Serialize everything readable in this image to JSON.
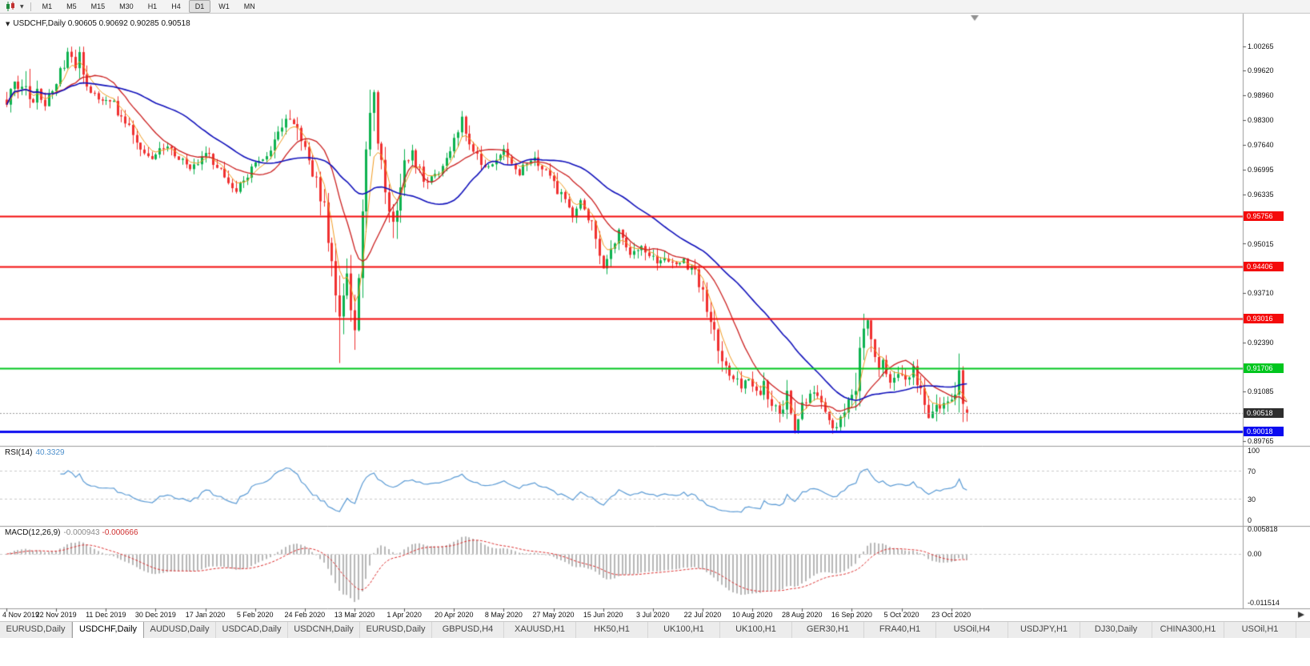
{
  "toolbar": {
    "timeframes": [
      "M1",
      "M5",
      "M15",
      "M30",
      "H1",
      "H4",
      "D1",
      "W1",
      "MN"
    ],
    "active_timeframe": "D1"
  },
  "main_chart": {
    "title": "USDCHF,Daily",
    "ohlc_text": "0.90605 0.90692 0.90285 0.90518",
    "open": "0.90605",
    "high": "0.90692",
    "low": "0.90285",
    "close": "0.90518",
    "axis_labels": [
      {
        "price": 1.00265,
        "label": "1.00265"
      },
      {
        "price": 0.9962,
        "label": "0.99620"
      },
      {
        "price": 0.9896,
        "label": "0.98960"
      },
      {
        "price": 0.983,
        "label": "0.98300"
      },
      {
        "price": 0.9764,
        "label": "0.97640"
      },
      {
        "price": 0.96995,
        "label": "0.96995"
      },
      {
        "price": 0.96335,
        "label": "0.96335"
      },
      {
        "price": 0.95015,
        "label": "0.95015"
      },
      {
        "price": 0.9371,
        "label": "0.93710"
      },
      {
        "price": 0.9239,
        "label": "0.92390"
      },
      {
        "price": 0.91085,
        "label": "0.91085"
      },
      {
        "price": 0.89765,
        "label": "0.89765"
      }
    ],
    "levels": [
      {
        "price": 0.95756,
        "label": "0.95756",
        "color": "#f40b0b",
        "width": 2
      },
      {
        "price": 0.94406,
        "label": "0.94406",
        "color": "#f40b0b",
        "width": 2
      },
      {
        "price": 0.93016,
        "label": "0.93016",
        "color": "#f40b0b",
        "width": 2
      },
      {
        "price": 0.91706,
        "label": "0.91706",
        "color": "#00c61e",
        "width": 2
      },
      {
        "price": 0.90018,
        "label": "0.90018",
        "color": "#0b0bf0",
        "width": 3
      }
    ],
    "current_price": {
      "price": 0.90518,
      "label": "0.90518",
      "badge_color": "#2e2e2e"
    }
  },
  "rsi": {
    "name": "RSI(14)",
    "value": "40.3329",
    "axis_labels": [
      "100",
      "70",
      "30",
      "0"
    ],
    "levels": [
      70,
      30
    ],
    "line_color": "#5b9bd5"
  },
  "macd": {
    "name": "MACD(12,26,9)",
    "main_value": "-0.000943",
    "signal_value": "-0.000666",
    "axis_top": "0.005818",
    "axis_zero": "0.00",
    "axis_bottom": "-0.011514",
    "bar_color": "#b8b8b8",
    "signal_color": "#dd2c2c"
  },
  "date_axis": [
    "4 Nov 2019",
    "22 Nov 2019",
    "11 Dec 2019",
    "30 Dec 2019",
    "17 Jan 2020",
    "5 Feb 2020",
    "24 Feb 2020",
    "13 Mar 2020",
    "1 Apr 2020",
    "20 Apr 2020",
    "8 May 2020",
    "27 May 2020",
    "15 Jun 2020",
    "3 Jul 2020",
    "22 Jul 2020",
    "10 Aug 2020",
    "28 Aug 2020",
    "16 Sep 2020",
    "5 Oct 2020",
    "23 Oct 2020"
  ],
  "tabs": [
    "EURUSD,Daily",
    "USDCHF,Daily",
    "AUDUSD,Daily",
    "USDCAD,Daily",
    "USDCNH,Daily",
    "EURUSD,Daily",
    "GBPUSD,H4",
    "XAUUSD,H1",
    "HK50,H1",
    "UK100,H1",
    "UK100,H1",
    "GER30,H1",
    "FRA40,H1",
    "USOil,H4",
    "USDJPY,H1",
    "DJ30,Daily",
    "CHINA300,H1",
    "USOil,H1"
  ],
  "active_tab_index": 1,
  "chart_data": {
    "type": "candlestick",
    "symbol": "USDCHF",
    "timeframe": "Daily",
    "bars": 252,
    "bar_labels_every": 13,
    "bull_color": "#0db24f",
    "bear_color": "#f03030",
    "last_bar": {
      "open": 0.90605,
      "high": 0.90692,
      "low": 0.90285,
      "close": 0.90518
    },
    "price_anchors": [
      [
        0,
        0.9885
      ],
      [
        1,
        0.992
      ],
      [
        2,
        0.9945
      ],
      [
        3,
        0.9915
      ],
      [
        4,
        0.9905
      ],
      [
        5,
        0.993
      ],
      [
        6,
        0.987
      ],
      [
        7,
        0.989
      ],
      [
        8,
        0.991
      ],
      [
        10,
        0.988
      ],
      [
        12,
        0.992
      ],
      [
        14,
        0.9955
      ],
      [
        16,
        1.0005
      ],
      [
        17,
        0.999
      ],
      [
        18,
        0.997
      ],
      [
        19,
        0.9995
      ],
      [
        20,
        0.995
      ],
      [
        21,
        0.9915
      ],
      [
        23,
        0.99
      ],
      [
        25,
        0.9885
      ],
      [
        27,
        0.9888
      ],
      [
        29,
        0.985
      ],
      [
        31,
        0.982
      ],
      [
        33,
        0.9795
      ],
      [
        35,
        0.9755
      ],
      [
        37,
        0.973
      ],
      [
        38,
        0.9718
      ],
      [
        40,
        0.9745
      ],
      [
        42,
        0.977
      ],
      [
        44,
        0.9745
      ],
      [
        46,
        0.9715
      ],
      [
        48,
        0.97
      ],
      [
        50,
        0.9722
      ],
      [
        52,
        0.974
      ],
      [
        54,
        0.972
      ],
      [
        56,
        0.97
      ],
      [
        58,
        0.9668
      ],
      [
        60,
        0.964
      ],
      [
        61,
        0.9655
      ],
      [
        62,
        0.9672
      ],
      [
        64,
        0.9695
      ],
      [
        66,
        0.9718
      ],
      [
        68,
        0.974
      ],
      [
        70,
        0.9765
      ],
      [
        72,
        0.9805
      ],
      [
        74,
        0.9845
      ],
      [
        75,
        0.9835
      ],
      [
        76,
        0.9795
      ],
      [
        78,
        0.9745
      ],
      [
        80,
        0.9695
      ],
      [
        82,
        0.9635
      ],
      [
        83,
        0.959
      ],
      [
        84,
        0.953
      ],
      [
        85,
        0.9455
      ],
      [
        86,
        0.936
      ],
      [
        87,
        0.929
      ],
      [
        88,
        0.9365
      ],
      [
        89,
        0.942
      ],
      [
        90,
        0.934
      ],
      [
        91,
        0.9255
      ],
      [
        92,
        0.939
      ],
      [
        93,
        0.956
      ],
      [
        94,
        0.973
      ],
      [
        95,
        0.9855
      ],
      [
        96,
        0.988
      ],
      [
        97,
        0.9795
      ],
      [
        98,
        0.97
      ],
      [
        99,
        0.9635
      ],
      [
        100,
        0.958
      ],
      [
        101,
        0.955
      ],
      [
        102,
        0.9615
      ],
      [
        103,
        0.9675
      ],
      [
        104,
        0.9715
      ],
      [
        106,
        0.9745
      ],
      [
        108,
        0.97
      ],
      [
        110,
        0.9662
      ],
      [
        112,
        0.9685
      ],
      [
        114,
        0.9718
      ],
      [
        116,
        0.9755
      ],
      [
        118,
        0.98
      ],
      [
        119,
        0.9822
      ],
      [
        120,
        0.9788
      ],
      [
        122,
        0.9752
      ],
      [
        124,
        0.9722
      ],
      [
        126,
        0.9698
      ],
      [
        128,
        0.9722
      ],
      [
        130,
        0.9742
      ],
      [
        132,
        0.9712
      ],
      [
        134,
        0.969
      ],
      [
        136,
        0.9712
      ],
      [
        138,
        0.973
      ],
      [
        140,
        0.97
      ],
      [
        142,
        0.9688
      ],
      [
        144,
        0.9648
      ],
      [
        146,
        0.9612
      ],
      [
        148,
        0.958
      ],
      [
        150,
        0.9608
      ],
      [
        152,
        0.9572
      ],
      [
        154,
        0.952
      ],
      [
        156,
        0.9452
      ],
      [
        158,
        0.9492
      ],
      [
        160,
        0.9528
      ],
      [
        162,
        0.9498
      ],
      [
        164,
        0.9472
      ],
      [
        166,
        0.9505
      ],
      [
        168,
        0.9472
      ],
      [
        170,
        0.9442
      ],
      [
        172,
        0.9468
      ],
      [
        174,
        0.944
      ],
      [
        176,
        0.9462
      ],
      [
        178,
        0.9442
      ],
      [
        180,
        0.9428
      ],
      [
        181,
        0.94
      ],
      [
        182,
        0.936
      ],
      [
        183,
        0.933
      ],
      [
        184,
        0.9295
      ],
      [
        185,
        0.9262
      ],
      [
        186,
        0.9225
      ],
      [
        187,
        0.9198
      ],
      [
        188,
        0.9172
      ],
      [
        190,
        0.9148
      ],
      [
        192,
        0.9122
      ],
      [
        194,
        0.9135
      ],
      [
        196,
        0.9098
      ],
      [
        198,
        0.9125
      ],
      [
        200,
        0.9078
      ],
      [
        202,
        0.9048
      ],
      [
        204,
        0.9092
      ],
      [
        206,
        0.9018
      ],
      [
        207,
        0.9042
      ],
      [
        208,
        0.9068
      ],
      [
        209,
        0.9092
      ],
      [
        211,
        0.9108
      ],
      [
        213,
        0.9072
      ],
      [
        215,
        0.9038
      ],
      [
        217,
        0.9008
      ],
      [
        218,
        0.9032
      ],
      [
        219,
        0.9058
      ],
      [
        220,
        0.9082
      ],
      [
        221,
        0.9102
      ],
      [
        222,
        0.9125
      ],
      [
        223,
        0.9198
      ],
      [
        224,
        0.9262
      ],
      [
        225,
        0.9292
      ],
      [
        226,
        0.9238
      ],
      [
        227,
        0.9192
      ],
      [
        228,
        0.9162
      ],
      [
        229,
        0.9178
      ],
      [
        230,
        0.9148
      ],
      [
        231,
        0.9122
      ],
      [
        232,
        0.9148
      ],
      [
        233,
        0.9168
      ],
      [
        234,
        0.9148
      ],
      [
        235,
        0.9132
      ],
      [
        236,
        0.915
      ],
      [
        237,
        0.9162
      ],
      [
        238,
        0.9138
      ],
      [
        239,
        0.9108
      ],
      [
        240,
        0.9068
      ],
      [
        241,
        0.9042
      ],
      [
        242,
        0.9062
      ],
      [
        243,
        0.9082
      ],
      [
        244,
        0.9052
      ],
      [
        245,
        0.9072
      ],
      [
        246,
        0.9088
      ],
      [
        247,
        0.9068
      ],
      [
        248,
        0.9108
      ],
      [
        249,
        0.9162
      ],
      [
        250,
        0.9098
      ],
      [
        251,
        0.9052
      ]
    ],
    "forced_highs": [
      [
        16,
        1.0023
      ],
      [
        96,
        0.9901
      ],
      [
        225,
        0.93016
      ],
      [
        249,
        0.9171
      ]
    ],
    "forced_lows": [
      [
        87,
        0.9184
      ],
      [
        91,
        0.9221
      ],
      [
        156,
        0.9438
      ],
      [
        174,
        0.9436
      ],
      [
        206,
        0.9001
      ],
      [
        217,
        0.9003
      ]
    ],
    "moving_averages": [
      {
        "period": 5,
        "type": "ema",
        "color": "#f29b20",
        "width": 1
      },
      {
        "period": 13,
        "type": "sma",
        "color": "#cc2020",
        "width": 1.3
      },
      {
        "period": 34,
        "type": "sma",
        "color": "#1111bb",
        "width": 1.6
      }
    ],
    "indicators": {
      "rsi_period": 14,
      "macd": [
        12,
        26,
        9
      ]
    }
  }
}
